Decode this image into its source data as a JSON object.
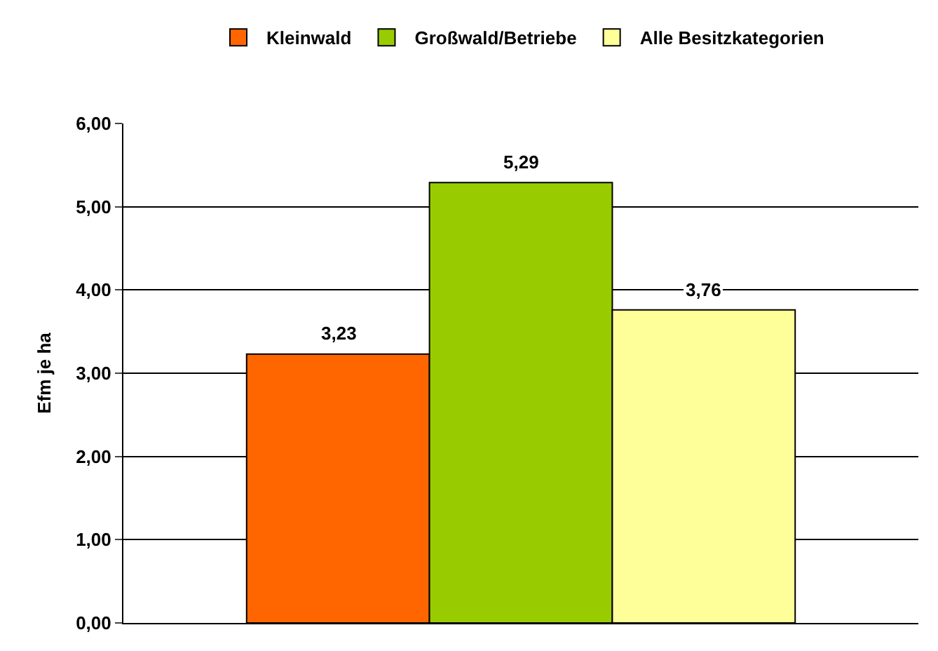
{
  "chart_data": {
    "type": "bar",
    "ylabel": "Efm je ha",
    "categories": [
      null
    ],
    "series": [
      {
        "name": "Kleinwald",
        "color": "#ff6600",
        "values": [
          3.23
        ],
        "value_labels": [
          "3,23"
        ]
      },
      {
        "name": "Großwald/Betriebe",
        "color": "#99cc00",
        "values": [
          5.29
        ],
        "value_labels": [
          "5,29"
        ]
      },
      {
        "name": "Alle Besitzkategorien",
        "color": "#ffff99",
        "values": [
          3.76
        ],
        "value_labels": [
          "3,76"
        ]
      }
    ],
    "ylim": [
      0,
      6
    ],
    "yticks": [
      {
        "value": 0,
        "label": "0,00"
      },
      {
        "value": 1,
        "label": "1,00"
      },
      {
        "value": 2,
        "label": "2,00"
      },
      {
        "value": 3,
        "label": "3,00"
      },
      {
        "value": 4,
        "label": "4,00"
      },
      {
        "value": 5,
        "label": "5,00"
      },
      {
        "value": 6,
        "label": "6,00"
      }
    ],
    "grid": "y",
    "legend": "top",
    "tick_labels": "y"
  }
}
